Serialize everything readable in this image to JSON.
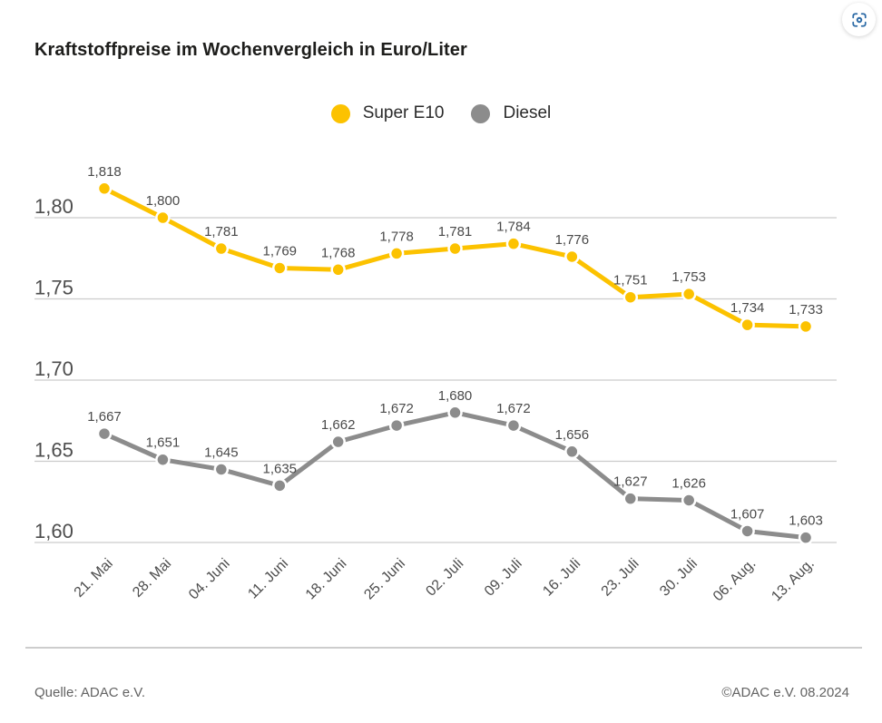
{
  "title": "Kraftstoffpreise im Wochenvergleich in Euro/Liter",
  "footer": {
    "source": "Quelle: ADAC e.V.",
    "copyright": "©ADAC e.V. 08.2024"
  },
  "icons": {
    "scan_button": "scan-frame-icon",
    "scan_color": "#2a69a5"
  },
  "colors": {
    "super_e10": "#fcc200",
    "diesel": "#8c8c8c",
    "grid": "#cccccc",
    "axis_text": "#4d4d4d",
    "data_label": "#4a4a4a"
  },
  "chart_data": {
    "type": "line",
    "title": "Kraftstoffpreise im Wochenvergleich in Euro/Liter",
    "categories": [
      "21. Mai",
      "28. Mai",
      "04. Juni",
      "11. Juni",
      "18. Juni",
      "25. Juni",
      "02. Juli",
      "09. Juli",
      "16. Juli",
      "23. Juli",
      "30. Juli",
      "06. Aug.",
      "13. Aug."
    ],
    "series": [
      {
        "name": "Super E10",
        "color": "#fcc200",
        "values": [
          1.818,
          1.8,
          1.781,
          1.769,
          1.768,
          1.778,
          1.781,
          1.784,
          1.776,
          1.751,
          1.753,
          1.734,
          1.733
        ]
      },
      {
        "name": "Diesel",
        "color": "#8c8c8c",
        "values": [
          1.667,
          1.651,
          1.645,
          1.635,
          1.662,
          1.672,
          1.68,
          1.672,
          1.656,
          1.627,
          1.626,
          1.607,
          1.603
        ]
      }
    ],
    "xlabel": "",
    "ylabel": "Euro/Liter",
    "yticks": [
      1.8,
      1.75,
      1.7,
      1.65,
      1.6
    ],
    "ylim": [
      1.578,
      1.84
    ],
    "grid": true,
    "legend_position": "top-center",
    "marker": "circle",
    "data_labels": true,
    "number_format": "de-comma-3"
  }
}
